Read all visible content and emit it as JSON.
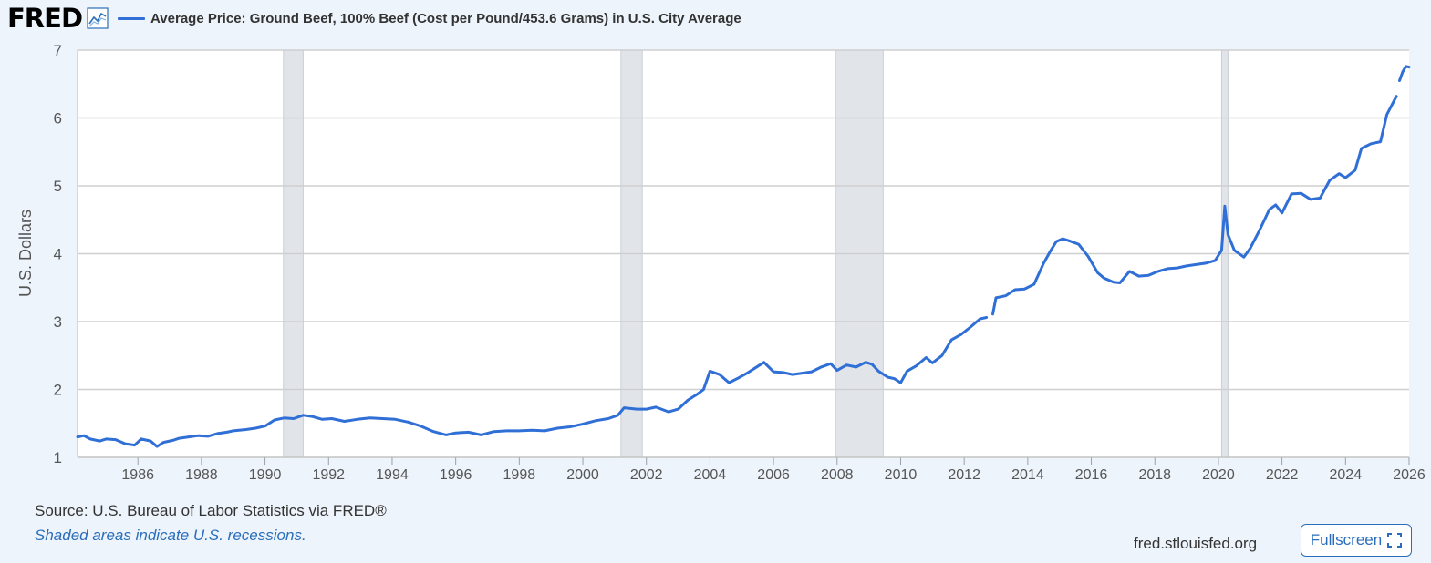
{
  "header": {
    "logo_text": "FRED",
    "title": "Average Price: Ground Beef, 100% Beef (Cost per Pound/453.6 Grams) in U.S. City Average"
  },
  "footer": {
    "source": "Source: U.S. Bureau of Labor Statistics via FRED®",
    "recession_note": "Shaded areas indicate U.S. recessions.",
    "site": "fred.stlouisfed.org",
    "fullscreen_label": "Fullscreen"
  },
  "colors": {
    "line": "#2f6fd6",
    "recession": "#e1e5ea",
    "grid": "#cccccc"
  },
  "chart_data": {
    "type": "line",
    "title": "Average Price: Ground Beef, 100% Beef (Cost per Pound/453.6 Grams) in U.S. City Average",
    "xlabel": "",
    "ylabel": "U.S. Dollars",
    "xlim": [
      1984.1,
      2026.0
    ],
    "ylim": [
      1,
      7
    ],
    "x_ticks": [
      1986,
      1988,
      1990,
      1992,
      1994,
      1996,
      1998,
      2000,
      2002,
      2004,
      2006,
      2008,
      2010,
      2012,
      2014,
      2016,
      2018,
      2020,
      2022,
      2024,
      2026
    ],
    "y_ticks": [
      1,
      2,
      3,
      4,
      5,
      6,
      7
    ],
    "recessions": [
      [
        1990.58,
        1991.2
      ],
      [
        2001.2,
        2001.87
      ],
      [
        2007.95,
        2009.45
      ],
      [
        2020.1,
        2020.3
      ]
    ],
    "series": [
      {
        "name": "Average Price: Ground Beef, 100% Beef",
        "segments": [
          {
            "x": [
              1984.1,
              1984.3,
              1984.5,
              1984.8,
              1985.0,
              1985.3,
              1985.6,
              1985.9,
              1986.1,
              1986.4,
              1986.6,
              1986.8,
              1987.1,
              1987.3,
              1987.6,
              1987.9,
              1988.2,
              1988.5,
              1988.8,
              1989.0,
              1989.4,
              1989.7,
              1990.0,
              1990.3,
              1990.6,
              1990.9,
              1991.2,
              1991.5,
              1991.8,
              1992.1,
              1992.5,
              1992.9,
              1993.3,
              1993.7,
              1994.1,
              1994.5,
              1994.9,
              1995.3,
              1995.7,
              1996.0,
              1996.4,
              1996.8,
              1997.2,
              1997.6,
              1998.0,
              1998.4,
              1998.8,
              1999.2,
              1999.6,
              2000.0,
              2000.4,
              2000.8,
              2001.1,
              2001.3,
              2001.7,
              2002.0,
              2002.3,
              2002.7,
              2003.0,
              2003.3,
              2003.6,
              2003.8,
              2004.0,
              2004.3,
              2004.6,
              2004.9,
              2005.2,
              2005.5,
              2005.7,
              2006.0,
              2006.3,
              2006.6,
              2006.9,
              2007.2,
              2007.5,
              2007.8,
              2008.0,
              2008.3,
              2008.6,
              2008.9,
              2009.1,
              2009.3,
              2009.6,
              2009.8,
              2010.0,
              2010.2,
              2010.5,
              2010.8,
              2011.0,
              2011.3,
              2011.6,
              2011.9,
              2012.2,
              2012.5,
              2012.7
            ],
            "y": [
              1.3,
              1.32,
              1.27,
              1.24,
              1.27,
              1.26,
              1.2,
              1.18,
              1.27,
              1.24,
              1.16,
              1.22,
              1.25,
              1.28,
              1.3,
              1.32,
              1.31,
              1.35,
              1.37,
              1.39,
              1.41,
              1.43,
              1.46,
              1.55,
              1.58,
              1.57,
              1.62,
              1.6,
              1.56,
              1.57,
              1.53,
              1.56,
              1.58,
              1.57,
              1.56,
              1.52,
              1.46,
              1.38,
              1.33,
              1.36,
              1.37,
              1.33,
              1.38,
              1.39,
              1.39,
              1.4,
              1.39,
              1.43,
              1.45,
              1.49,
              1.54,
              1.57,
              1.62,
              1.73,
              1.71,
              1.71,
              1.74,
              1.67,
              1.71,
              1.84,
              1.93,
              2.0,
              2.27,
              2.22,
              2.1,
              2.17,
              2.25,
              2.34,
              2.4,
              2.26,
              2.25,
              2.22,
              2.24,
              2.26,
              2.33,
              2.38,
              2.28,
              2.36,
              2.33,
              2.4,
              2.37,
              2.27,
              2.18,
              2.16,
              2.1,
              2.27,
              2.35,
              2.47,
              2.39,
              2.5,
              2.73,
              2.81,
              2.92,
              3.04,
              3.06
            ]
          },
          {
            "x": [
              2012.9,
              2013.0,
              2013.3,
              2013.6,
              2013.9,
              2014.2,
              2014.5,
              2014.7,
              2014.9,
              2015.1,
              2015.3,
              2015.6,
              2015.9,
              2016.2,
              2016.4,
              2016.7,
              2016.9,
              2017.2,
              2017.5,
              2017.8,
              2018.1,
              2018.4,
              2018.7,
              2019.0,
              2019.3,
              2019.6,
              2019.9,
              2020.1,
              2020.2,
              2020.3,
              2020.5,
              2020.8,
              2021.0,
              2021.3,
              2021.6,
              2021.8,
              2022.0,
              2022.3,
              2022.6,
              2022.9,
              2023.2,
              2023.5,
              2023.8,
              2024.0,
              2024.3,
              2024.5,
              2024.8,
              2025.1,
              2025.3,
              2025.6
            ],
            "y": [
              3.11,
              3.35,
              3.38,
              3.47,
              3.48,
              3.55,
              3.86,
              4.03,
              4.18,
              4.22,
              4.19,
              4.14,
              3.96,
              3.72,
              3.64,
              3.58,
              3.57,
              3.74,
              3.67,
              3.68,
              3.74,
              3.78,
              3.79,
              3.82,
              3.84,
              3.86,
              3.9,
              4.05,
              4.7,
              4.28,
              4.05,
              3.95,
              4.08,
              4.35,
              4.65,
              4.72,
              4.6,
              4.88,
              4.89,
              4.8,
              4.82,
              5.08,
              5.18,
              5.12,
              5.23,
              5.55,
              5.62,
              5.65,
              6.05,
              6.32
            ]
          },
          {
            "x": [
              2025.7,
              2025.8,
              2025.9,
              2026.0
            ],
            "y": [
              6.55,
              6.68,
              6.76,
              6.75
            ]
          }
        ]
      }
    ]
  }
}
